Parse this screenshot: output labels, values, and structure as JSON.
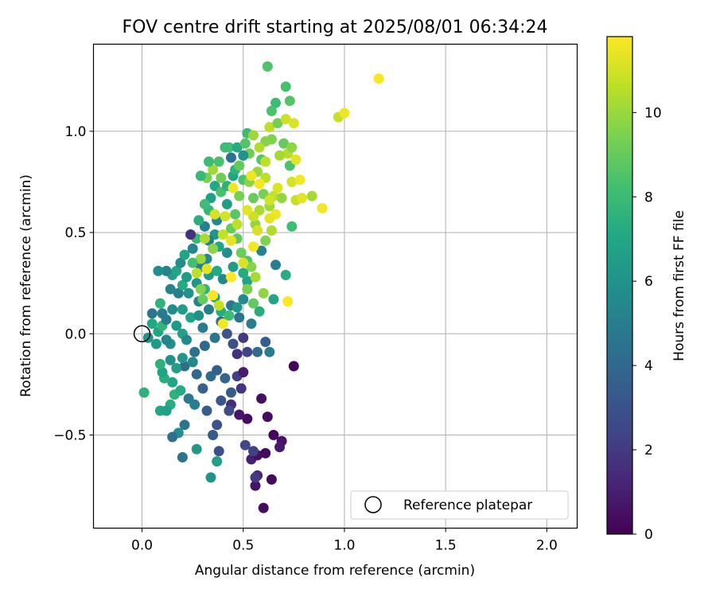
{
  "chart_data": {
    "type": "scatter",
    "title": "FOV centre drift starting at 2025/08/01 06:34:24",
    "xlabel": "Angular distance from reference (arcmin)",
    "ylabel": "Rotation from reference (arcmin)",
    "xlim": [
      -0.24,
      2.15
    ],
    "ylim": [
      -0.96,
      1.43
    ],
    "xticks": [
      "0.0",
      "0.5",
      "1.0",
      "1.5",
      "2.0"
    ],
    "yticks": [
      "1.0",
      "0.5",
      "0.0",
      "−0.5"
    ],
    "grid": true,
    "legend": {
      "position": "bottom-right",
      "entries": [
        "Reference platepar"
      ]
    },
    "reference_point": {
      "x": 0.0,
      "y": 0.0
    },
    "colorbar": {
      "label": "Hours from first FF file",
      "range": [
        0,
        11.8
      ],
      "ticks": [
        "0",
        "2",
        "4",
        "6",
        "8",
        "10"
      ],
      "colormap": "viridis"
    },
    "series": [
      {
        "points": [
          [
            0.6,
            -0.86,
            0.4
          ],
          [
            0.56,
            -0.75,
            0.6
          ],
          [
            0.64,
            -0.72,
            0.3
          ],
          [
            0.57,
            -0.7,
            1.2
          ],
          [
            0.54,
            -0.62,
            1.0
          ],
          [
            0.57,
            -0.6,
            0.5
          ],
          [
            0.61,
            -0.59,
            0.3
          ],
          [
            0.69,
            -0.53,
            0.6
          ],
          [
            0.65,
            -0.5,
            0.2
          ],
          [
            0.68,
            -0.56,
            0.8
          ],
          [
            0.75,
            -0.16,
            0.1
          ],
          [
            0.62,
            -0.41,
            0.4
          ],
          [
            0.59,
            -0.32,
            0.5
          ],
          [
            0.52,
            -0.42,
            0.3
          ],
          [
            0.48,
            -0.4,
            0.7
          ],
          [
            0.44,
            -0.35,
            1.5
          ],
          [
            0.49,
            -0.27,
            1.8
          ],
          [
            0.47,
            -0.21,
            2.2
          ],
          [
            0.5,
            -0.19,
            0.9
          ],
          [
            0.47,
            -0.1,
            1.6
          ],
          [
            0.52,
            -0.09,
            2.4
          ],
          [
            0.45,
            -0.05,
            2.9
          ],
          [
            0.5,
            -0.02,
            2.0
          ],
          [
            0.56,
            -0.71,
            1.9
          ],
          [
            0.55,
            -0.58,
            2.3
          ],
          [
            0.51,
            -0.55,
            2.6
          ],
          [
            0.38,
            -0.58,
            2.8
          ],
          [
            0.35,
            -0.5,
            3.3
          ],
          [
            0.37,
            -0.45,
            3.0
          ],
          [
            0.32,
            -0.38,
            3.5
          ],
          [
            0.39,
            -0.33,
            3.2
          ],
          [
            0.43,
            -0.38,
            2.7
          ],
          [
            0.44,
            -0.29,
            3.4
          ],
          [
            0.41,
            -0.22,
            3.8
          ],
          [
            0.3,
            -0.27,
            3.7
          ],
          [
            0.34,
            -0.21,
            4.1
          ],
          [
            0.37,
            -0.18,
            3.6
          ],
          [
            0.27,
            -0.2,
            3.9
          ],
          [
            0.21,
            -0.16,
            4.2
          ],
          [
            0.26,
            -0.09,
            4.4
          ],
          [
            0.31,
            -0.06,
            4.0
          ],
          [
            0.36,
            -0.02,
            4.6
          ],
          [
            0.3,
            0.03,
            4.8
          ],
          [
            0.39,
            0.06,
            4.3
          ],
          [
            0.42,
            0.0,
            3.1
          ],
          [
            0.33,
            0.12,
            4.9
          ],
          [
            0.28,
            0.16,
            5.2
          ],
          [
            0.44,
            0.14,
            4.7
          ],
          [
            0.48,
            0.08,
            4.5
          ],
          [
            0.54,
            0.05,
            5.0
          ],
          [
            0.57,
            -0.09,
            4.2
          ],
          [
            0.63,
            -0.09,
            4.8
          ],
          [
            0.61,
            -0.04,
            3.5
          ],
          [
            0.34,
            -0.71,
            6.0
          ],
          [
            0.37,
            -0.63,
            6.5
          ],
          [
            0.27,
            -0.57,
            6.2
          ],
          [
            0.2,
            -0.61,
            4.5
          ],
          [
            0.18,
            -0.49,
            5.8
          ],
          [
            0.15,
            -0.51,
            4.3
          ],
          [
            0.21,
            -0.45,
            4.6
          ],
          [
            0.26,
            -0.35,
            5.0
          ],
          [
            0.23,
            -0.32,
            4.8
          ],
          [
            0.14,
            -0.35,
            7.3
          ],
          [
            0.09,
            -0.38,
            7.0
          ],
          [
            0.12,
            -0.38,
            6.6
          ],
          [
            0.01,
            -0.29,
            7.5
          ],
          [
            0.16,
            -0.3,
            7.6
          ],
          [
            0.19,
            -0.28,
            7.2
          ],
          [
            0.15,
            -0.24,
            6.9
          ],
          [
            0.11,
            -0.22,
            7.4
          ],
          [
            0.1,
            -0.19,
            6.8
          ],
          [
            0.17,
            -0.17,
            6.5
          ],
          [
            0.14,
            -0.13,
            5.9
          ],
          [
            0.09,
            -0.15,
            7.5
          ],
          [
            0.2,
            -0.12,
            6.1
          ],
          [
            0.25,
            -0.14,
            5.4
          ],
          [
            0.14,
            -0.05,
            5.7
          ],
          [
            0.12,
            -0.03,
            5.3
          ],
          [
            0.07,
            -0.05,
            6.4
          ],
          [
            0.03,
            -0.02,
            6.0
          ],
          [
            0.08,
            0.01,
            6.9
          ],
          [
            0.05,
            0.05,
            7.1
          ],
          [
            0.1,
            0.04,
            7.7
          ],
          [
            0.12,
            0.07,
            4.9
          ],
          [
            0.17,
            0.04,
            6.3
          ],
          [
            0.2,
            0.0,
            6.7
          ],
          [
            0.22,
            -0.03,
            5.5
          ],
          [
            0.05,
            0.1,
            4.6
          ],
          [
            0.1,
            0.1,
            4.9
          ],
          [
            0.09,
            0.15,
            7.6
          ],
          [
            0.15,
            0.12,
            5.6
          ],
          [
            0.2,
            0.12,
            6.5
          ],
          [
            0.24,
            0.08,
            6.8
          ],
          [
            0.28,
            0.09,
            5.9
          ],
          [
            0.14,
            0.22,
            5.3
          ],
          [
            0.18,
            0.2,
            5.0
          ],
          [
            0.23,
            0.2,
            6.0
          ],
          [
            0.2,
            0.24,
            7.2
          ],
          [
            0.15,
            0.29,
            6.6
          ],
          [
            0.12,
            0.31,
            5.2
          ],
          [
            0.08,
            0.31,
            5.8
          ],
          [
            0.17,
            0.31,
            7.0
          ],
          [
            0.22,
            0.28,
            6.4
          ],
          [
            0.19,
            0.35,
            5.7
          ],
          [
            0.21,
            0.39,
            6.9
          ],
          [
            0.29,
            0.33,
            5.0
          ],
          [
            0.27,
            0.25,
            6.1
          ],
          [
            0.25,
            0.42,
            5.3
          ],
          [
            0.32,
            0.37,
            5.6
          ],
          [
            0.33,
            0.29,
            6.3
          ],
          [
            0.37,
            0.31,
            7.1
          ],
          [
            0.4,
            0.27,
            5.5
          ],
          [
            0.31,
            0.22,
            7.6
          ],
          [
            0.36,
            0.18,
            6.8
          ],
          [
            0.39,
            0.11,
            7.3
          ],
          [
            0.43,
            0.09,
            8.0
          ],
          [
            0.47,
            0.13,
            6.2
          ],
          [
            0.5,
            0.17,
            5.6
          ],
          [
            0.52,
            0.26,
            6.8
          ],
          [
            0.5,
            0.3,
            7.2
          ],
          [
            0.45,
            0.33,
            6.4
          ],
          [
            0.42,
            0.4,
            5.8
          ],
          [
            0.38,
            0.43,
            7.0
          ],
          [
            0.36,
            0.49,
            6.2
          ],
          [
            0.33,
            0.46,
            4.8
          ],
          [
            0.31,
            0.53,
            5.1
          ],
          [
            0.27,
            0.47,
            7.8
          ],
          [
            0.24,
            0.49,
            1.7
          ],
          [
            0.28,
            0.56,
            7.4
          ],
          [
            0.33,
            0.61,
            7.7
          ],
          [
            0.37,
            0.56,
            5.5
          ],
          [
            0.34,
            0.67,
            6.6
          ],
          [
            0.31,
            0.64,
            8.1
          ],
          [
            0.36,
            0.73,
            7.1
          ],
          [
            0.39,
            0.7,
            8.3
          ],
          [
            0.42,
            0.64,
            6.5
          ],
          [
            0.42,
            0.73,
            7.5
          ],
          [
            0.45,
            0.78,
            6.8
          ],
          [
            0.44,
            0.87,
            4.4
          ],
          [
            0.46,
            0.81,
            7.6
          ],
          [
            0.43,
            0.92,
            8.2
          ],
          [
            0.47,
            0.92,
            7.2
          ],
          [
            0.51,
            0.94,
            8.6
          ],
          [
            0.52,
            0.99,
            8.0
          ],
          [
            0.5,
            0.76,
            8.4
          ],
          [
            0.48,
            0.68,
            9.3
          ],
          [
            0.46,
            0.59,
            8.7
          ],
          [
            0.44,
            0.52,
            9.0
          ],
          [
            0.47,
            0.47,
            8.8
          ],
          [
            0.49,
            0.4,
            9.2
          ],
          [
            0.52,
            0.36,
            8.5
          ],
          [
            0.54,
            0.33,
            9.6
          ],
          [
            0.56,
            0.28,
            10.2
          ],
          [
            0.52,
            0.22,
            9.4
          ],
          [
            0.55,
            0.15,
            8.9
          ],
          [
            0.58,
            0.11,
            7.3
          ],
          [
            0.6,
            0.2,
            9.8
          ],
          [
            0.59,
            0.41,
            5.2
          ],
          [
            0.61,
            0.46,
            9.5
          ],
          [
            0.56,
            0.54,
            9.9
          ],
          [
            0.58,
            0.61,
            10.3
          ],
          [
            0.55,
            0.67,
            9.1
          ],
          [
            0.53,
            0.75,
            9.7
          ],
          [
            0.57,
            0.8,
            10.0
          ],
          [
            0.59,
            0.86,
            8.6
          ],
          [
            0.61,
            0.77,
            10.6
          ],
          [
            0.6,
            0.69,
            9.4
          ],
          [
            0.63,
            0.63,
            10.1
          ],
          [
            0.65,
            0.68,
            10.7
          ],
          [
            0.66,
            0.59,
            11.5
          ],
          [
            0.64,
            0.51,
            10.4
          ],
          [
            0.66,
            0.34,
            5.0
          ],
          [
            0.65,
            0.17,
            6.9
          ],
          [
            0.72,
            0.16,
            11.8
          ],
          [
            0.71,
            0.29,
            7.3
          ],
          [
            0.74,
            0.53,
            8.1
          ],
          [
            0.76,
            0.66,
            10.8
          ],
          [
            0.74,
            0.75,
            11.0
          ],
          [
            0.73,
            0.83,
            8.4
          ],
          [
            0.78,
            0.76,
            11.6
          ],
          [
            0.76,
            0.86,
            11.3
          ],
          [
            0.72,
            0.89,
            10.5
          ],
          [
            0.7,
            0.94,
            9.0
          ],
          [
            0.68,
            0.88,
            10.2
          ],
          [
            0.64,
            0.96,
            9.5
          ],
          [
            0.63,
            1.02,
            10.6
          ],
          [
            0.67,
            1.04,
            9.3
          ],
          [
            0.71,
            1.06,
            10.9
          ],
          [
            0.75,
            1.04,
            11.2
          ],
          [
            0.66,
            1.14,
            8.0
          ],
          [
            0.64,
            1.1,
            8.4
          ],
          [
            0.71,
            1.22,
            8.3
          ],
          [
            0.62,
            1.32,
            8.5
          ],
          [
            0.61,
            0.95,
            9.6
          ],
          [
            0.58,
            0.92,
            10.4
          ],
          [
            0.55,
            0.98,
            10.0
          ],
          [
            0.53,
            0.89,
            9.2
          ],
          [
            0.5,
            0.88,
            6.0
          ],
          [
            0.48,
            0.83,
            8.9
          ],
          [
            0.45,
            0.72,
            11.5
          ],
          [
            0.41,
            0.92,
            8.1
          ],
          [
            0.39,
            0.77,
            9.2
          ],
          [
            0.38,
            0.85,
            8.3
          ],
          [
            0.35,
            0.81,
            10.1
          ],
          [
            0.32,
            0.77,
            9.4
          ],
          [
            0.29,
            0.78,
            7.9
          ],
          [
            0.33,
            0.85,
            8.0
          ],
          [
            0.41,
            0.58,
            11.0
          ],
          [
            0.44,
            0.46,
            11.4
          ],
          [
            0.4,
            0.49,
            10.7
          ],
          [
            0.36,
            0.59,
            11.1
          ],
          [
            0.35,
            0.42,
            9.7
          ],
          [
            0.31,
            0.47,
            10.3
          ],
          [
            0.29,
            0.37,
            10.0
          ],
          [
            0.32,
            0.32,
            11.3
          ],
          [
            0.29,
            0.22,
            9.6
          ],
          [
            0.27,
            0.3,
            10.6
          ],
          [
            0.25,
            0.35,
            8.2
          ],
          [
            0.35,
            0.19,
            11.7
          ],
          [
            0.38,
            0.14,
            10.8
          ],
          [
            0.4,
            0.05,
            11.6
          ],
          [
            0.3,
            0.17,
            9.0
          ],
          [
            0.55,
            0.58,
            10.9
          ],
          [
            0.57,
            0.51,
            11.1
          ],
          [
            0.63,
            0.57,
            11.4
          ],
          [
            0.63,
            0.66,
            11.0
          ],
          [
            0.67,
            0.72,
            11.2
          ],
          [
            0.69,
            0.67,
            9.9
          ],
          [
            0.55,
            0.43,
            11.6
          ],
          [
            0.5,
            0.35,
            11.2
          ],
          [
            0.44,
            0.28,
            11.8
          ],
          [
            0.54,
            0.78,
            11.5
          ],
          [
            0.61,
            0.85,
            10.6
          ],
          [
            0.58,
            0.74,
            11.7
          ],
          [
            0.74,
            0.92,
            9.8
          ],
          [
            0.89,
            0.62,
            11.6
          ],
          [
            0.97,
            1.07,
            10.8
          ],
          [
            1.0,
            1.09,
            11.5
          ],
          [
            1.17,
            1.26,
            11.7
          ],
          [
            0.73,
            1.15,
            8.6
          ],
          [
            0.79,
            0.67,
            11.3
          ],
          [
            0.84,
            0.68,
            10.2
          ],
          [
            0.52,
            0.61,
            11.3
          ],
          [
            0.47,
            0.54,
            10.6
          ]
        ]
      }
    ]
  }
}
